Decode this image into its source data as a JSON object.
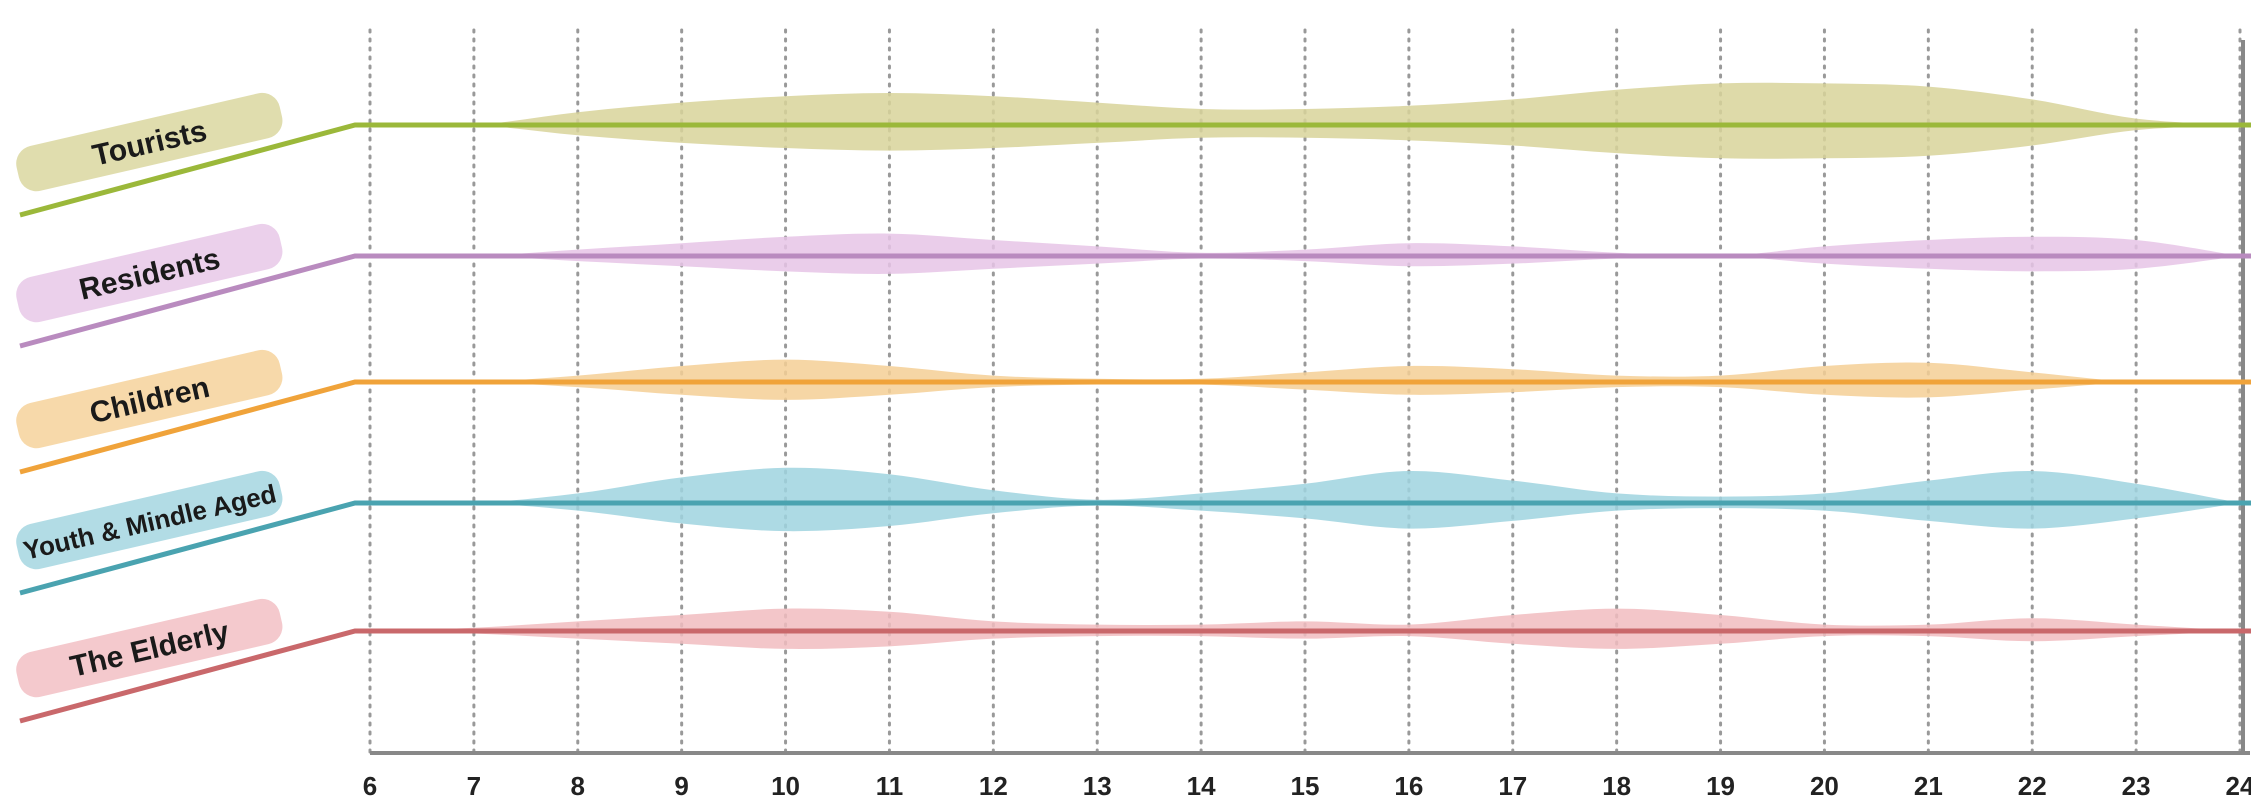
{
  "chart_data": {
    "type": "ribbon",
    "x": [
      6,
      7,
      8,
      9,
      10,
      11,
      12,
      13,
      14,
      15,
      16,
      17,
      18,
      19,
      20,
      21,
      22,
      23,
      24
    ],
    "xlim": [
      6,
      24
    ],
    "xticks": [
      6,
      7,
      8,
      9,
      10,
      11,
      12,
      13,
      14,
      15,
      16,
      17,
      18,
      19,
      20,
      21,
      22,
      23,
      24
    ],
    "grid": true,
    "series": [
      {
        "name": "Tourists",
        "color": "#9bb83a",
        "fill": "#d8d49a",
        "values": [
          0,
          0,
          8,
          14,
          18,
          20,
          18,
          14,
          10,
          10,
          12,
          16,
          22,
          26,
          26,
          24,
          16,
          4,
          0
        ]
      },
      {
        "name": "Residents",
        "color": "#b98bbf",
        "fill": "#e6c4e6",
        "values": [
          0,
          0,
          4,
          8,
          12,
          14,
          10,
          6,
          2,
          4,
          8,
          6,
          2,
          0,
          6,
          10,
          12,
          10,
          0
        ]
      },
      {
        "name": "Children",
        "color": "#f0a33a",
        "fill": "#f5cf95",
        "values": [
          0,
          0,
          4,
          10,
          14,
          10,
          4,
          2,
          2,
          6,
          10,
          8,
          4,
          4,
          10,
          12,
          6,
          0,
          0
        ]
      },
      {
        "name": "Youth & Mindle Aged",
        "color": "#4aa3b0",
        "fill": "#9fd3df",
        "values": [
          0,
          0,
          6,
          16,
          22,
          18,
          8,
          2,
          6,
          12,
          20,
          14,
          6,
          4,
          6,
          14,
          20,
          12,
          0
        ]
      },
      {
        "name": "The Elderly",
        "color": "#c9686b",
        "fill": "#f1bcc0",
        "values": [
          0,
          2,
          6,
          10,
          14,
          12,
          6,
          4,
          4,
          6,
          4,
          10,
          14,
          10,
          4,
          4,
          8,
          4,
          0
        ]
      }
    ]
  }
}
